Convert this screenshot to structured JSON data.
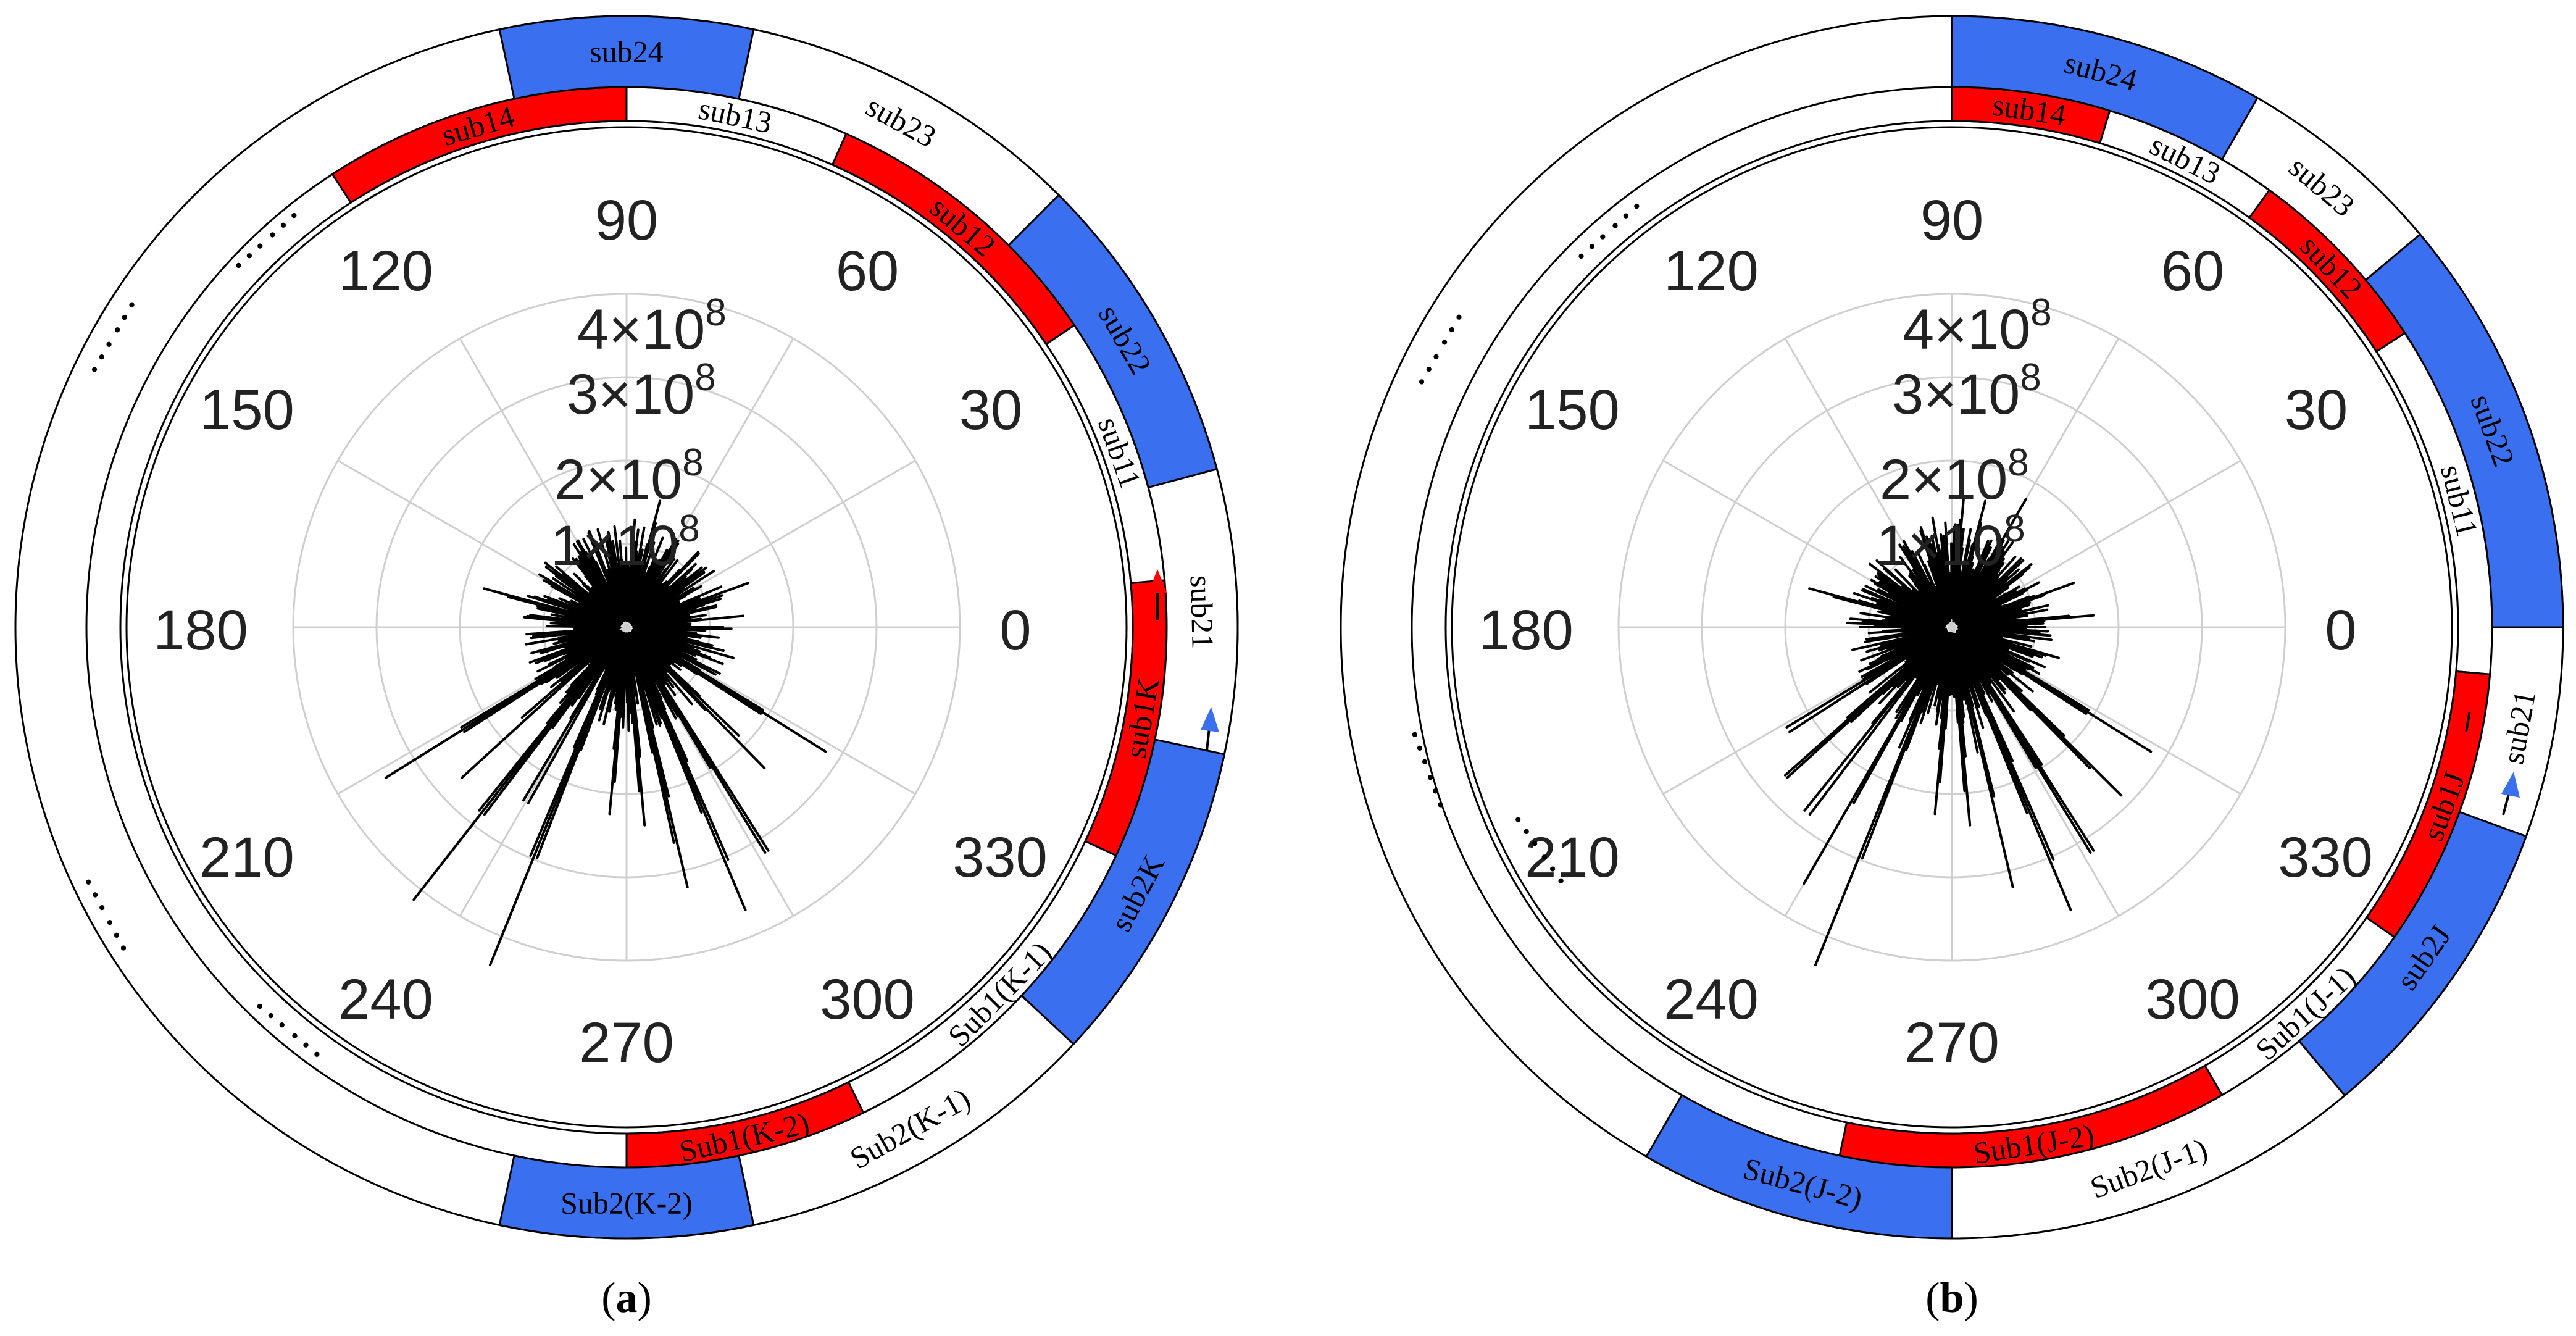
{
  "colors": {
    "red": "#ff0000",
    "blue": "#3a6ff0",
    "grid": "#cfcfcf",
    "trace": "#000000"
  },
  "panels": [
    {
      "id": "a",
      "label": "a",
      "angle_labels": [
        "90",
        "120",
        "60",
        "150",
        "30",
        "180",
        "0",
        "210",
        "330",
        "240",
        "300",
        "270"
      ],
      "r_labels": [
        "4",
        "×",
        "10",
        "8",
        "3",
        "×",
        "10",
        "8",
        "2",
        "×",
        "10",
        "8",
        "1",
        "×",
        "10",
        "8"
      ],
      "inner_segments": [
        "sub14",
        "sub13",
        "sub12",
        "sub11",
        "sub1K",
        "Sub1(K-1)",
        "Sub1(K-2)"
      ],
      "outer_segments": [
        "sub24",
        "sub23",
        "sub22",
        "sub21",
        "sub2K",
        "Sub2(K-1)",
        "Sub2(K-2)"
      ],
      "dots": "……"
    },
    {
      "id": "b",
      "label": "b",
      "angle_labels": [
        "90",
        "120",
        "60",
        "150",
        "30",
        "180",
        "0",
        "210",
        "330",
        "240",
        "300",
        "270"
      ],
      "r_labels": [
        "4",
        "×",
        "10",
        "8",
        "3",
        "×",
        "10",
        "8",
        "2",
        "×",
        "10",
        "8",
        "1",
        "×",
        "10",
        "8"
      ],
      "inner_segments": [
        "sub14",
        "sub13",
        "sub12",
        "sub11",
        "sub1J",
        "Sub1(J-1)",
        "Sub1(J-2)"
      ],
      "outer_segments": [
        "sub24",
        "sub23",
        "sub22",
        "sub21",
        "sub2J",
        "Sub2(J-1)",
        "Sub2(J-2)"
      ],
      "dots": "……"
    }
  ]
}
